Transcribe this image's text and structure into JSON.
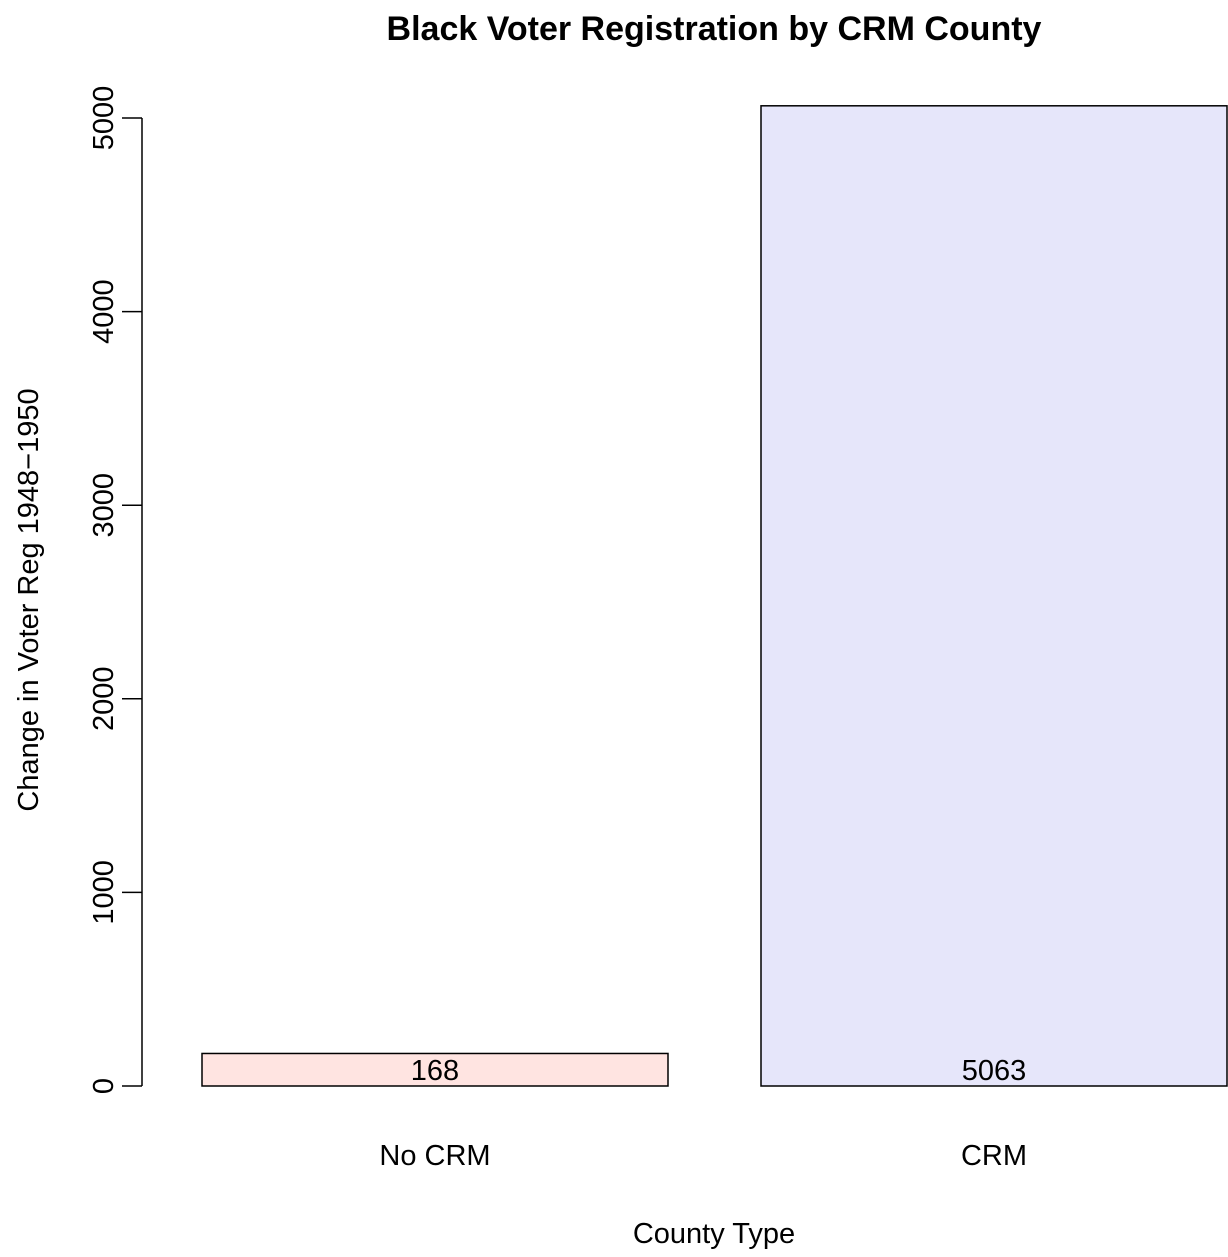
{
  "chart_data": {
    "type": "bar",
    "title": "Black Voter Registration by CRM County",
    "xlabel": "County Type",
    "ylabel": "Change in Voter Reg 1948−1950",
    "categories": [
      "No CRM",
      "CRM"
    ],
    "values": [
      168,
      5063
    ],
    "data_labels": [
      "168",
      "5063"
    ],
    "ylim": [
      0,
      5000
    ],
    "yticks": [
      0,
      1000,
      2000,
      3000,
      4000,
      5000
    ],
    "ytick_labels": [
      "0",
      "1000",
      "2000",
      "3000",
      "4000",
      "5000"
    ],
    "colors": [
      "#ffe4e1",
      "#e6e6fa"
    ],
    "bar_edge_color": "#000000",
    "grid": false,
    "legend": "none"
  }
}
